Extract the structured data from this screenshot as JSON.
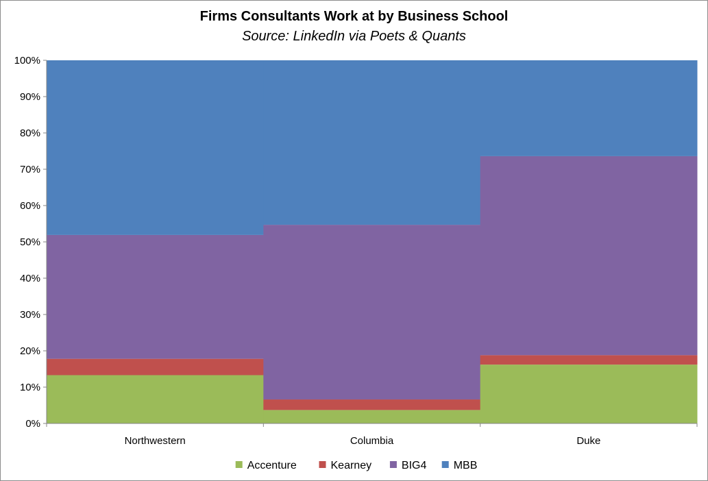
{
  "chart_data": {
    "type": "area",
    "stacked": true,
    "percent": true,
    "title": "Firms Consultants Work at by Business School",
    "subtitle": "Source: LinkedIn via Poets & Quants",
    "categories": [
      "Northwestern",
      "Columbia",
      "Duke"
    ],
    "series": [
      {
        "name": "Accenture",
        "color": "#9bbb59",
        "values": [
          13.3,
          3.7,
          16.2
        ]
      },
      {
        "name": "Kearney",
        "color": "#c0504d",
        "values": [
          4.5,
          2.9,
          2.6
        ]
      },
      {
        "name": "BIG4",
        "color": "#8064a2",
        "values": [
          34.1,
          48.1,
          54.8
        ]
      },
      {
        "name": "MBB",
        "color": "#4f81bd",
        "values": [
          48.1,
          45.3,
          26.4
        ]
      }
    ],
    "ylim": [
      0,
      100
    ],
    "yticks": [
      "0%",
      "10%",
      "20%",
      "30%",
      "40%",
      "50%",
      "60%",
      "70%",
      "80%",
      "90%",
      "100%"
    ],
    "legend_position": "bottom",
    "grid": false
  }
}
